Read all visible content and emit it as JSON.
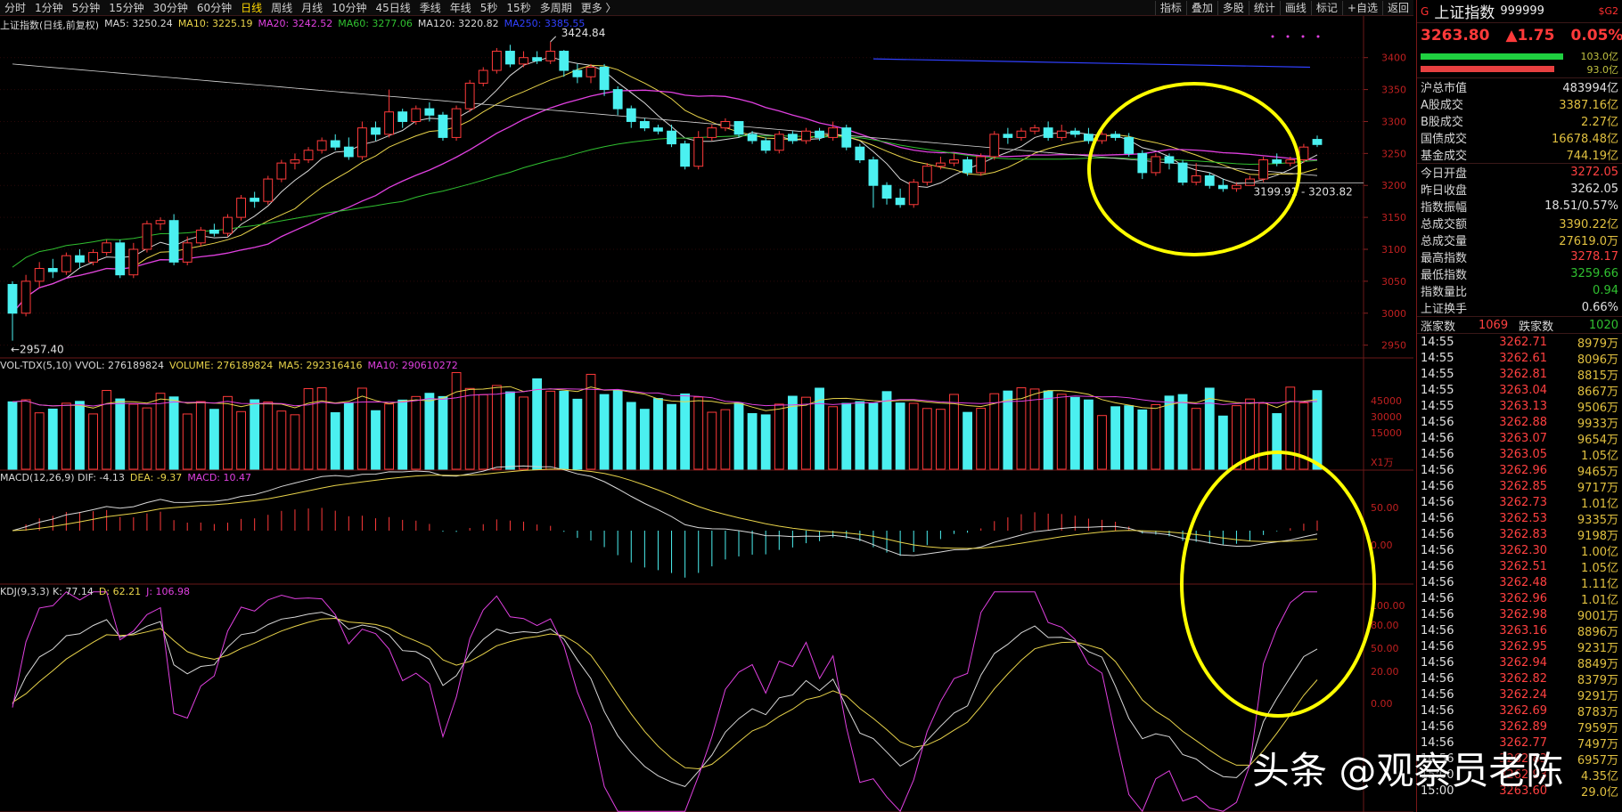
{
  "toolbar": {
    "periods": [
      "分时",
      "1分钟",
      "5分钟",
      "15分钟",
      "30分钟",
      "60分钟",
      "日线",
      "周线",
      "月线",
      "10分钟",
      "45日线",
      "季线",
      "年线",
      "5秒",
      "15秒",
      "多周期",
      "更多 〉"
    ],
    "active_period": "日线",
    "tools": [
      "指标",
      "叠加",
      "多股",
      "统计",
      "画线",
      "标记",
      "+自选",
      "返回"
    ]
  },
  "main_pane": {
    "title": "上证指数(日线,前复权)",
    "ma": [
      {
        "label": "MA5: 3250.24",
        "color": "#d8d8d8"
      },
      {
        "label": "MA10: 3225.19",
        "color": "#e8d34a"
      },
      {
        "label": "MA20: 3242.52",
        "color": "#e040e0"
      },
      {
        "label": "MA60: 3277.06",
        "color": "#30c030"
      },
      {
        "label": "MA120: 3220.82",
        "color": "#d8d8d8"
      },
      {
        "label": "MA250: 3385.55",
        "color": "#3040ff"
      }
    ],
    "high_label": "3424.84",
    "low_label": "←2957.40",
    "range_label": "3199.91 - 3203.82",
    "y_ticks": [
      "3400",
      "3350",
      "3300",
      "3250",
      "3200",
      "3150",
      "3100",
      "3050",
      "3000",
      "2950"
    ]
  },
  "vol_pane": {
    "labels": [
      {
        "label": "VOL-TDX(5,10)  VVOL: 276189824",
        "color": "#d8d8d8"
      },
      {
        "label": "VOLUME: 276189824",
        "color": "#e8d34a"
      },
      {
        "label": "MA5: 292316416",
        "color": "#e8d34a"
      },
      {
        "label": "MA10: 290610272",
        "color": "#e040e0"
      }
    ],
    "y_ticks": [
      "45000",
      "30000",
      "15000",
      "X1万"
    ]
  },
  "macd_pane": {
    "labels": [
      {
        "label": "MACD(12,26,9)  DIF: -4.13",
        "color": "#d8d8d8"
      },
      {
        "label": "DEA: -9.37",
        "color": "#e8d34a"
      },
      {
        "label": "MACD: 10.47",
        "color": "#e040e0"
      }
    ],
    "y_ticks": [
      "50.00",
      "0.00"
    ]
  },
  "kdj_pane": {
    "labels": [
      {
        "label": "KDJ(9,3,3)  K: 77.14",
        "color": "#d8d8d8"
      },
      {
        "label": "D: 62.21",
        "color": "#e8d34a"
      },
      {
        "label": "J: 106.98",
        "color": "#e040e0"
      }
    ],
    "y_ticks": [
      "100.00",
      "80.00",
      "50.00",
      "20.00",
      "0.00"
    ]
  },
  "sidebar": {
    "marker": "G",
    "name": "上证指数",
    "code": "999999",
    "chg_small": "$G2",
    "price": "3263.80",
    "change": "▲1.75",
    "pct": "0.05%",
    "bar1_value": "103.0亿",
    "bar2_value": "93.0亿",
    "stats1": [
      {
        "k": "沪总市值",
        "v": "483994亿",
        "color": "#e0e0e0"
      },
      {
        "k": "A股成交",
        "v": "3387.16亿",
        "color": "#e0c040"
      },
      {
        "k": "B股成交",
        "v": "2.27亿",
        "color": "#e0c040"
      },
      {
        "k": "国债成交",
        "v": "16678.48亿",
        "color": "#e0c040"
      },
      {
        "k": "基金成交",
        "v": "744.19亿",
        "color": "#e0c040"
      }
    ],
    "stats2": [
      {
        "k": "今日开盘",
        "v": "3272.05",
        "color": "#ff4040"
      },
      {
        "k": "昨日收盘",
        "v": "3262.05",
        "color": "#e0e0e0"
      },
      {
        "k": "指数振幅",
        "v": "18.51/0.57%",
        "color": "#e0e0e0"
      },
      {
        "k": "总成交额",
        "v": "3390.22亿",
        "color": "#e0c040"
      },
      {
        "k": "总成交量",
        "v": "27619.0万",
        "color": "#e0c040"
      },
      {
        "k": "最高指数",
        "v": "3278.17",
        "color": "#ff4040"
      },
      {
        "k": "最低指数",
        "v": "3259.66",
        "color": "#30c030"
      },
      {
        "k": "指数量比",
        "v": "0.94",
        "color": "#30c030"
      },
      {
        "k": "上证换手",
        "v": "0.66%",
        "color": "#e0e0e0"
      }
    ],
    "up_label": "涨家数",
    "up_count": "1069",
    "down_label": "跌家数",
    "down_count": "1020",
    "ticks": [
      {
        "t": "14:55",
        "p": "3262.71",
        "v": "8979万"
      },
      {
        "t": "14:55",
        "p": "3262.61",
        "v": "8096万"
      },
      {
        "t": "14:55",
        "p": "3262.81",
        "v": "8815万"
      },
      {
        "t": "14:55",
        "p": "3263.04",
        "v": "8667万"
      },
      {
        "t": "14:55",
        "p": "3263.13",
        "v": "9506万"
      },
      {
        "t": "14:56",
        "p": "3262.88",
        "v": "9933万"
      },
      {
        "t": "14:56",
        "p": "3263.07",
        "v": "9654万"
      },
      {
        "t": "14:56",
        "p": "3263.05",
        "v": "1.05亿"
      },
      {
        "t": "14:56",
        "p": "3262.96",
        "v": "9465万"
      },
      {
        "t": "14:56",
        "p": "3262.85",
        "v": "9717万"
      },
      {
        "t": "14:56",
        "p": "3262.73",
        "v": "1.01亿"
      },
      {
        "t": "14:56",
        "p": "3262.53",
        "v": "9335万"
      },
      {
        "t": "14:56",
        "p": "3262.83",
        "v": "9198万"
      },
      {
        "t": "14:56",
        "p": "3262.30",
        "v": "1.00亿"
      },
      {
        "t": "14:56",
        "p": "3262.51",
        "v": "1.05亿"
      },
      {
        "t": "14:56",
        "p": "3262.48",
        "v": "1.11亿"
      },
      {
        "t": "14:56",
        "p": "3262.96",
        "v": "1.01亿"
      },
      {
        "t": "14:56",
        "p": "3262.98",
        "v": "9001万"
      },
      {
        "t": "14:56",
        "p": "3263.16",
        "v": "8896万"
      },
      {
        "t": "14:56",
        "p": "3262.95",
        "v": "9231万"
      },
      {
        "t": "14:56",
        "p": "3262.94",
        "v": "8849万"
      },
      {
        "t": "14:56",
        "p": "3262.82",
        "v": "8379万"
      },
      {
        "t": "14:56",
        "p": "3262.24",
        "v": "9291万"
      },
      {
        "t": "14:56",
        "p": "3262.69",
        "v": "8783万"
      },
      {
        "t": "14:56",
        "p": "3262.89",
        "v": "7959万"
      },
      {
        "t": "14:56",
        "p": "3262.77",
        "v": "7497万"
      },
      {
        "t": "14:56",
        "p": "3262.83",
        "v": "6957万"
      },
      {
        "t": "15:00",
        "p": "3262.93",
        "v": "4.35亿"
      },
      {
        "t": "15:00",
        "p": "3263.60",
        "v": "29.0亿"
      }
    ]
  },
  "watermark": "头条 @观察员老陈",
  "colors": {
    "up": "#ff3a3a",
    "down": "#4bf0f0",
    "highlight": "#ffff00"
  },
  "chart_data": {
    "type": "candlestick",
    "y_range": [
      2930,
      3440
    ],
    "candles": [
      [
        3045,
        3000,
        2957,
        3050
      ],
      [
        3000,
        3050,
        2995,
        3060
      ],
      [
        3050,
        3070,
        3040,
        3080
      ],
      [
        3070,
        3065,
        3055,
        3085
      ],
      [
        3065,
        3090,
        3060,
        3095
      ],
      [
        3090,
        3080,
        3070,
        3100
      ],
      [
        3080,
        3095,
        3075,
        3100
      ],
      [
        3095,
        3110,
        3090,
        3115
      ],
      [
        3110,
        3060,
        3055,
        3115
      ],
      [
        3060,
        3100,
        3055,
        3110
      ],
      [
        3100,
        3140,
        3095,
        3145
      ],
      [
        3140,
        3145,
        3130,
        3150
      ],
      [
        3145,
        3080,
        3075,
        3155
      ],
      [
        3080,
        3110,
        3075,
        3120
      ],
      [
        3110,
        3130,
        3105,
        3135
      ],
      [
        3130,
        3125,
        3120,
        3140
      ],
      [
        3125,
        3150,
        3120,
        3155
      ],
      [
        3150,
        3180,
        3145,
        3185
      ],
      [
        3180,
        3175,
        3165,
        3190
      ],
      [
        3175,
        3210,
        3170,
        3215
      ],
      [
        3210,
        3235,
        3205,
        3240
      ],
      [
        3235,
        3240,
        3225,
        3250
      ],
      [
        3240,
        3255,
        3235,
        3260
      ],
      [
        3255,
        3270,
        3250,
        3275
      ],
      [
        3270,
        3260,
        3255,
        3280
      ],
      [
        3260,
        3245,
        3240,
        3275
      ],
      [
        3245,
        3290,
        3240,
        3300
      ],
      [
        3290,
        3280,
        3270,
        3300
      ],
      [
        3280,
        3315,
        3275,
        3350
      ],
      [
        3315,
        3300,
        3290,
        3320
      ],
      [
        3300,
        3320,
        3295,
        3325
      ],
      [
        3320,
        3310,
        3300,
        3330
      ],
      [
        3310,
        3275,
        3270,
        3315
      ],
      [
        3275,
        3320,
        3270,
        3325
      ],
      [
        3320,
        3360,
        3315,
        3365
      ],
      [
        3360,
        3380,
        3355,
        3385
      ],
      [
        3380,
        3410,
        3375,
        3415
      ],
      [
        3410,
        3390,
        3385,
        3420
      ],
      [
        3390,
        3400,
        3385,
        3410
      ],
      [
        3400,
        3395,
        3390,
        3410
      ],
      [
        3395,
        3410,
        3390,
        3424.84
      ],
      [
        3410,
        3380,
        3370,
        3412
      ],
      [
        3380,
        3370,
        3360,
        3390
      ],
      [
        3370,
        3385,
        3360,
        3390
      ],
      [
        3385,
        3350,
        3340,
        3390
      ],
      [
        3350,
        3320,
        3310,
        3355
      ],
      [
        3320,
        3300,
        3290,
        3325
      ],
      [
        3300,
        3290,
        3285,
        3305
      ],
      [
        3290,
        3285,
        3280,
        3295
      ],
      [
        3285,
        3265,
        3260,
        3295
      ],
      [
        3265,
        3230,
        3225,
        3270
      ],
      [
        3230,
        3275,
        3225,
        3285
      ],
      [
        3275,
        3290,
        3270,
        3295
      ],
      [
        3290,
        3300,
        3285,
        3305
      ],
      [
        3300,
        3280,
        3275,
        3300
      ],
      [
        3280,
        3270,
        3265,
        3285
      ],
      [
        3270,
        3255,
        3250,
        3275
      ],
      [
        3255,
        3280,
        3250,
        3285
      ],
      [
        3280,
        3270,
        3265,
        3285
      ],
      [
        3270,
        3285,
        3265,
        3290
      ],
      [
        3285,
        3275,
        3270,
        3290
      ],
      [
        3275,
        3290,
        3270,
        3300
      ],
      [
        3290,
        3260,
        3255,
        3295
      ],
      [
        3260,
        3240,
        3235,
        3265
      ],
      [
        3240,
        3200,
        3165,
        3245
      ],
      [
        3200,
        3180,
        3170,
        3205
      ],
      [
        3180,
        3170,
        3165,
        3195
      ],
      [
        3170,
        3205,
        3165,
        3210
      ],
      [
        3205,
        3230,
        3200,
        3235
      ],
      [
        3230,
        3235,
        3225,
        3245
      ],
      [
        3235,
        3240,
        3230,
        3250
      ],
      [
        3240,
        3220,
        3215,
        3245
      ],
      [
        3220,
        3245,
        3215,
        3250
      ],
      [
        3245,
        3280,
        3240,
        3285
      ],
      [
        3280,
        3275,
        3265,
        3290
      ],
      [
        3275,
        3285,
        3270,
        3290
      ],
      [
        3285,
        3290,
        3280,
        3295
      ],
      [
        3290,
        3275,
        3270,
        3300
      ],
      [
        3275,
        3285,
        3270,
        3295
      ],
      [
        3285,
        3280,
        3275,
        3290
      ],
      [
        3280,
        3270,
        3265,
        3290
      ],
      [
        3270,
        3280,
        3265,
        3285
      ],
      [
        3280,
        3275,
        3270,
        3285
      ],
      [
        3275,
        3250,
        3245,
        3282
      ],
      [
        3250,
        3220,
        3210,
        3255
      ],
      [
        3220,
        3245,
        3215,
        3250
      ],
      [
        3245,
        3235,
        3225,
        3250
      ],
      [
        3235,
        3205,
        3200,
        3240
      ],
      [
        3205,
        3215,
        3200,
        3235
      ],
      [
        3215,
        3200,
        3195,
        3220
      ],
      [
        3200,
        3195,
        3190,
        3210
      ],
      [
        3195,
        3200,
        3190,
        3205
      ],
      [
        3200,
        3210,
        3199.91,
        3215
      ],
      [
        3210,
        3240,
        3205,
        3245
      ],
      [
        3240,
        3235,
        3230,
        3250
      ],
      [
        3235,
        3240,
        3230,
        3245
      ],
      [
        3240,
        3260,
        3235,
        3265
      ],
      [
        3272,
        3264,
        3260,
        3278
      ]
    ]
  }
}
